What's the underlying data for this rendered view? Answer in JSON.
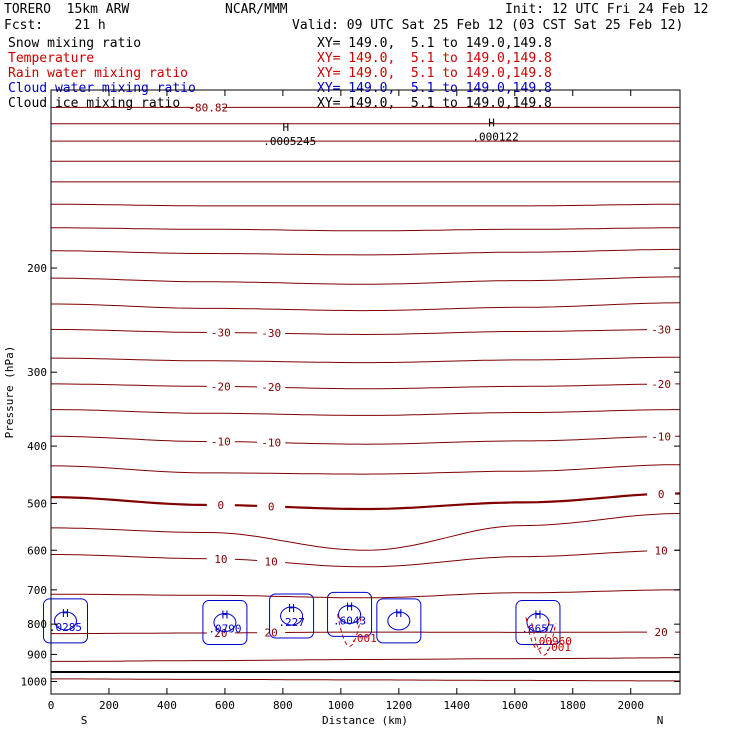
{
  "header": {
    "model": "TORERO  15km ARW",
    "center": "NCAR/MMM",
    "init": "Init: 12 UTC Fri 24 Feb 12",
    "fcst": "Fcst:    21 h",
    "valid": "Valid: 09 UTC Sat 25 Feb 12 (03 CST Sat 25 Feb 12)"
  },
  "legend": [
    {
      "name": "Snow mixing ratio",
      "xy": "XY= 149.0,  5.1 to 149.0,149.8",
      "color": "#000000"
    },
    {
      "name": "Temperature",
      "xy": "XY= 149.0,  5.1 to 149.0,149.8",
      "color": "#cc0000"
    },
    {
      "name": "Rain water mixing ratio",
      "xy": "XY= 149.0,  5.1 to 149.0,149.8",
      "color": "#cc0000"
    },
    {
      "name": "Cloud water mixing ratio",
      "xy": "XY= 149.0,  5.1 to 149.0,149.8",
      "color": "#0000cc"
    },
    {
      "name": "Cloud ice mixing ratio",
      "xy": "XY= 149.0,  5.1 to 149.0,149.8",
      "color": "#000000"
    }
  ],
  "chart_data": {
    "type": "line",
    "xlabel": "Distance (km)",
    "ylabel": "Pressure (hPa)",
    "xlim": [
      0,
      2170
    ],
    "ylim": [
      1050,
      100
    ],
    "y_scale": "log",
    "x_ticks": [
      0,
      200,
      400,
      600,
      800,
      1000,
      1200,
      1400,
      1600,
      1800,
      2000
    ],
    "y_ticks": [
      200,
      300,
      400,
      500,
      600,
      700,
      800,
      900,
      1000
    ],
    "end_labels": {
      "left": "S",
      "right": "N"
    },
    "temperature_color": "#800000",
    "temperature_interval": 5,
    "temperature_contours": [
      {
        "value": -80,
        "label": "-80.82",
        "p": [
          107,
          107,
          107,
          107,
          107
        ]
      },
      {
        "value": -75,
        "p": [
          114,
          114,
          114,
          114,
          114
        ]
      },
      {
        "value": -70,
        "p": [
          122,
          122,
          122,
          122,
          122
        ]
      },
      {
        "value": -65,
        "p": [
          132,
          132,
          132,
          132,
          132
        ]
      },
      {
        "value": -60,
        "p": [
          143,
          143,
          143,
          143,
          143
        ]
      },
      {
        "value": -55,
        "p": [
          156,
          157,
          157,
          157,
          156
        ]
      },
      {
        "value": -50,
        "p": [
          171,
          172,
          173,
          172,
          171
        ]
      },
      {
        "value": -45,
        "p": [
          187,
          189,
          190,
          188,
          186
        ]
      },
      {
        "value": -40,
        "p": [
          208,
          211,
          213,
          210,
          207
        ]
      },
      {
        "value": -35,
        "p": [
          230,
          234,
          236,
          233,
          229
        ]
      },
      {
        "value": -30,
        "labels": [
          "-30",
          "-30",
          "-30"
        ],
        "p": [
          254,
          257,
          259,
          256,
          254
        ]
      },
      {
        "value": -25,
        "p": [
          284,
          287,
          289,
          286,
          283
        ]
      },
      {
        "value": -20,
        "labels": [
          "-20",
          "-20",
          "-20"
        ],
        "p": [
          314,
          317,
          320,
          317,
          314
        ]
      },
      {
        "value": -15,
        "p": [
          347,
          352,
          355,
          351,
          347
        ]
      },
      {
        "value": -10,
        "labels": [
          "-10",
          "-10",
          "-10"
        ],
        "p": [
          385,
          393,
          397,
          392,
          385
        ]
      },
      {
        "value": -5,
        "p": [
          432,
          444,
          446,
          441,
          430
        ]
      },
      {
        "value": 0,
        "labels": [
          "0",
          "0",
          "0"
        ],
        "bold": true,
        "p": [
          488,
          503,
          511,
          498,
          481
        ]
      },
      {
        "value": 5,
        "p": [
          550,
          560,
          600,
          545,
          520
        ]
      },
      {
        "value": 10,
        "labels": [
          "10",
          "10",
          "10"
        ],
        "p": [
          610,
          620,
          640,
          615,
          600
        ]
      },
      {
        "value": 15,
        "p": [
          712,
          715,
          722,
          708,
          700
        ]
      },
      {
        "value": 20,
        "labels": [
          "20",
          "20",
          "20"
        ],
        "p": [
          830,
          828,
          825,
          826,
          825
        ]
      },
      {
        "value": 25,
        "p": [
          925,
          922,
          918,
          915,
          912
        ]
      },
      {
        "value": 30,
        "p": [
          990,
          992,
          994,
          996,
          998
        ]
      }
    ],
    "cloud_water_color": "#0000cc",
    "cloud_water": [
      {
        "x": 50,
        "p": 790,
        "label": ".0285"
      },
      {
        "x": 600,
        "p": 795,
        "label": ".0790"
      },
      {
        "x": 830,
        "p": 775,
        "label": ".227"
      },
      {
        "x": 1030,
        "p": 770,
        "label": ".6043"
      },
      {
        "x": 1200,
        "p": 790,
        "label": ""
      },
      {
        "x": 1680,
        "p": 795,
        "label": ".6657"
      }
    ],
    "rain_water_color": "#cc0000",
    "rain_water": [
      {
        "x": 1030,
        "p": 845,
        "label": ".001"
      },
      {
        "x": 1680,
        "p": 855,
        "label": ".00960"
      },
      {
        "x": 1700,
        "p": 875,
        "label": ".001"
      }
    ],
    "cloud_ice": [
      {
        "x": 810,
        "p": 120,
        "label": ".0005245"
      },
      {
        "x": 1520,
        "p": 118,
        "label": ".000122"
      }
    ]
  }
}
